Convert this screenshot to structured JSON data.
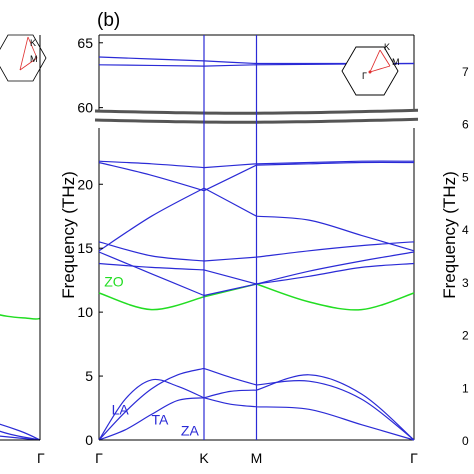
{
  "figure": {
    "panel_label": "(b)",
    "ylabel": "Frequency (THz)",
    "right_ylabel": "Frequency (THz)",
    "k_labels": [
      "Γ",
      "K",
      "M",
      "Γ"
    ],
    "left_panel_k_label": "Γ",
    "bz_labels": {
      "k": "K",
      "m": "M",
      "gamma": "Γ"
    },
    "left_bz_labels": {
      "k": "K",
      "m": "M"
    }
  },
  "chart_data": {
    "type": "line",
    "title": "",
    "xlabel": "",
    "ylabel": "Frequency (THz)",
    "x_ticks": [
      "Γ",
      "K",
      "M",
      "Γ"
    ],
    "x_positions": [
      0,
      1,
      1.5,
      3
    ],
    "y_break": {
      "lower_range": [
        0,
        25
      ],
      "upper_range": [
        60,
        65
      ]
    },
    "y_ticks_lower": [
      0,
      5,
      10,
      15,
      20
    ],
    "y_ticks_upper": [
      60,
      65
    ],
    "colors": {
      "acoustic_optical": "#2b2bd6",
      "zo": "#22dd22",
      "break": "#555555",
      "bz_triangle": "#e03030"
    },
    "branch_labels": [
      {
        "text": "LA",
        "x": 0.12,
        "y": 2.0,
        "color": "#2b2bd6"
      },
      {
        "text": "TA",
        "x": 0.5,
        "y": 1.2,
        "color": "#2b2bd6"
      },
      {
        "text": "ZA",
        "x": 0.78,
        "y": 0.35,
        "color": "#2b2bd6"
      },
      {
        "text": "ZO",
        "x": 0.05,
        "y": 12.0,
        "color": "#22dd22"
      }
    ],
    "series": [
      {
        "x": [
          0,
          0.25,
          0.5,
          0.75,
          1,
          1.25,
          1.5,
          2,
          2.5,
          3
        ],
        "values": [
          0,
          0.8,
          2.0,
          3.1,
          3.3,
          2.8,
          2.6,
          2.4,
          1.2,
          0
        ]
      },
      {
        "x": [
          0,
          0.25,
          0.5,
          0.75,
          1,
          1.25,
          1.5,
          2,
          2.5,
          3
        ],
        "values": [
          0,
          2.2,
          4.0,
          5.1,
          5.6,
          4.9,
          4.3,
          4.6,
          3.2,
          0
        ]
      },
      {
        "x": [
          0,
          0.25,
          0.5,
          0.75,
          1,
          1.25,
          1.5,
          2,
          2.5,
          3
        ],
        "values": [
          0,
          3.2,
          4.7,
          4.2,
          3.3,
          3.8,
          3.9,
          5.1,
          3.6,
          0
        ]
      },
      {
        "x": [
          0,
          0.5,
          1,
          1.25,
          1.5,
          2.0,
          2.5,
          3
        ],
        "values": [
          11.5,
          10.2,
          11.2,
          11.7,
          12.2,
          10.8,
          10.2,
          11.5
        ],
        "color": "#22dd22"
      },
      {
        "x": [
          0,
          0.5,
          1,
          1.5,
          2.0,
          2.5,
          3
        ],
        "values": [
          13.8,
          13.5,
          13.3,
          12.2,
          12.8,
          13.5,
          13.8
        ]
      },
      {
        "x": [
          0,
          0.5,
          1,
          1.5,
          2.0,
          2.5,
          3
        ],
        "values": [
          14.7,
          13.0,
          11.3,
          12.2,
          13.2,
          14.0,
          14.7
        ]
      },
      {
        "x": [
          0,
          0.5,
          1,
          1.5,
          2.0,
          2.5,
          3
        ],
        "values": [
          15.5,
          14.4,
          14.0,
          14.3,
          14.8,
          15.2,
          15.5
        ]
      },
      {
        "x": [
          0,
          0.5,
          1,
          1.5,
          2.0,
          2.5,
          3
        ],
        "values": [
          14.8,
          17.5,
          19.7,
          17.5,
          17.2,
          16.0,
          14.8
        ]
      },
      {
        "x": [
          0,
          0.5,
          1,
          1.5,
          2.0,
          2.5,
          3
        ],
        "values": [
          21.7,
          20.7,
          19.5,
          21.5,
          21.6,
          21.7,
          21.7
        ]
      },
      {
        "x": [
          0,
          0.5,
          1,
          1.5,
          2.0,
          2.5,
          3
        ],
        "values": [
          21.8,
          21.6,
          21.3,
          21.6,
          21.7,
          21.8,
          21.8
        ]
      },
      {
        "x": [
          0,
          1,
          1.5,
          3
        ],
        "values": [
          63.9,
          63.6,
          63.4,
          63.4
        ]
      },
      {
        "x": [
          0,
          1,
          1.5,
          3
        ],
        "values": [
          63.3,
          63.2,
          63.3,
          63.4
        ]
      }
    ]
  },
  "left_panel": {
    "y_ticks": [
      0,
      1,
      2,
      3,
      4,
      5,
      6,
      7
    ],
    "series": [
      {
        "x": [
          0,
          0.4,
          0.8,
          1
        ],
        "values": [
          0.7,
          0.45,
          0.15,
          0
        ]
      },
      {
        "x": [
          0,
          0.4,
          0.8,
          1
        ],
        "values": [
          2.5,
          1.7,
          0.7,
          0
        ]
      },
      {
        "x": [
          0,
          0.5,
          1
        ],
        "values": [
          4.0,
          1.0,
          0
        ]
      },
      {
        "x": [
          0,
          0.5,
          0.9,
          1
        ],
        "values": [
          12.0,
          10.0,
          9.5,
          9.5
        ],
        "color": "#22dd22"
      }
    ]
  }
}
